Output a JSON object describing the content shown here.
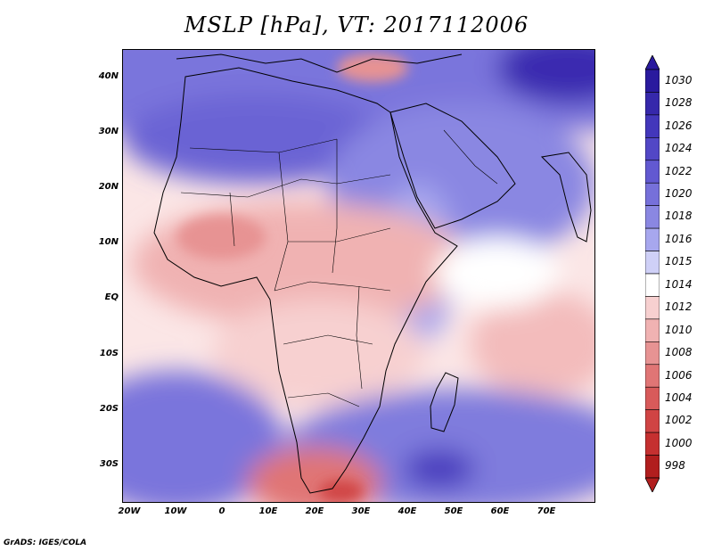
{
  "title": "MSLP [hPa], VT: 2017112006",
  "footer": "GrADS: IGES/COLA",
  "map": {
    "region": "Africa",
    "lon_range": [
      -22,
      80
    ],
    "lat_range": [
      -37,
      45
    ],
    "lat_ticks": [
      {
        "value": 40,
        "label": "40N"
      },
      {
        "value": 30,
        "label": "30N"
      },
      {
        "value": 20,
        "label": "20N"
      },
      {
        "value": 10,
        "label": "10N"
      },
      {
        "value": 0,
        "label": "EQ"
      },
      {
        "value": -10,
        "label": "10S"
      },
      {
        "value": -20,
        "label": "20S"
      },
      {
        "value": -30,
        "label": "30S"
      }
    ],
    "lon_ticks": [
      {
        "value": -20,
        "label": "20W"
      },
      {
        "value": -10,
        "label": "10W"
      },
      {
        "value": 0,
        "label": "0"
      },
      {
        "value": 10,
        "label": "10E"
      },
      {
        "value": 20,
        "label": "20E"
      },
      {
        "value": 30,
        "label": "30E"
      },
      {
        "value": 40,
        "label": "40E"
      },
      {
        "value": 50,
        "label": "50E"
      },
      {
        "value": 60,
        "label": "60E"
      },
      {
        "value": 70,
        "label": "70E"
      }
    ]
  },
  "colorbar": {
    "levels": [
      "1030",
      "1028",
      "1026",
      "1024",
      "1022",
      "1020",
      "1018",
      "1016",
      "1015",
      "1014",
      "1012",
      "1010",
      "1008",
      "1006",
      "1004",
      "1002",
      "1000",
      "998"
    ],
    "colors": [
      "#2a1a9e",
      "#3628ab",
      "#4337bb",
      "#5247c6",
      "#6259d1",
      "#7670da",
      "#8a87e2",
      "#a7a7ee",
      "#cfd0f7",
      "#ffffff",
      "#f7d0d0",
      "#f0b2b2",
      "#e79393",
      "#e07575",
      "#d85a5a",
      "#d04444",
      "#c53030",
      "#b11e1e"
    ]
  }
}
